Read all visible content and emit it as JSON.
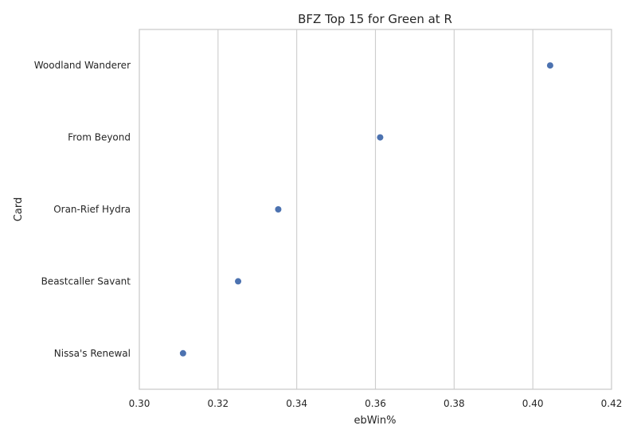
{
  "chart_data": {
    "type": "scatter",
    "title": "BFZ Top 15 for Green at R",
    "xlabel": "ebWin%",
    "ylabel": "Card",
    "xlim": [
      0.3,
      0.42
    ],
    "x_ticks": [
      "0.30",
      "0.32",
      "0.34",
      "0.36",
      "0.38",
      "0.40",
      "0.42"
    ],
    "categories": [
      "Woodland Wanderer",
      "From Beyond",
      "Oran-Rief Hydra",
      "Beastcaller Savant",
      "Nissa's Renewal"
    ],
    "values": [
      0.4044,
      0.3612,
      0.3353,
      0.3251,
      0.3111
    ],
    "grid": "vertical",
    "color": "#4c72b0"
  }
}
